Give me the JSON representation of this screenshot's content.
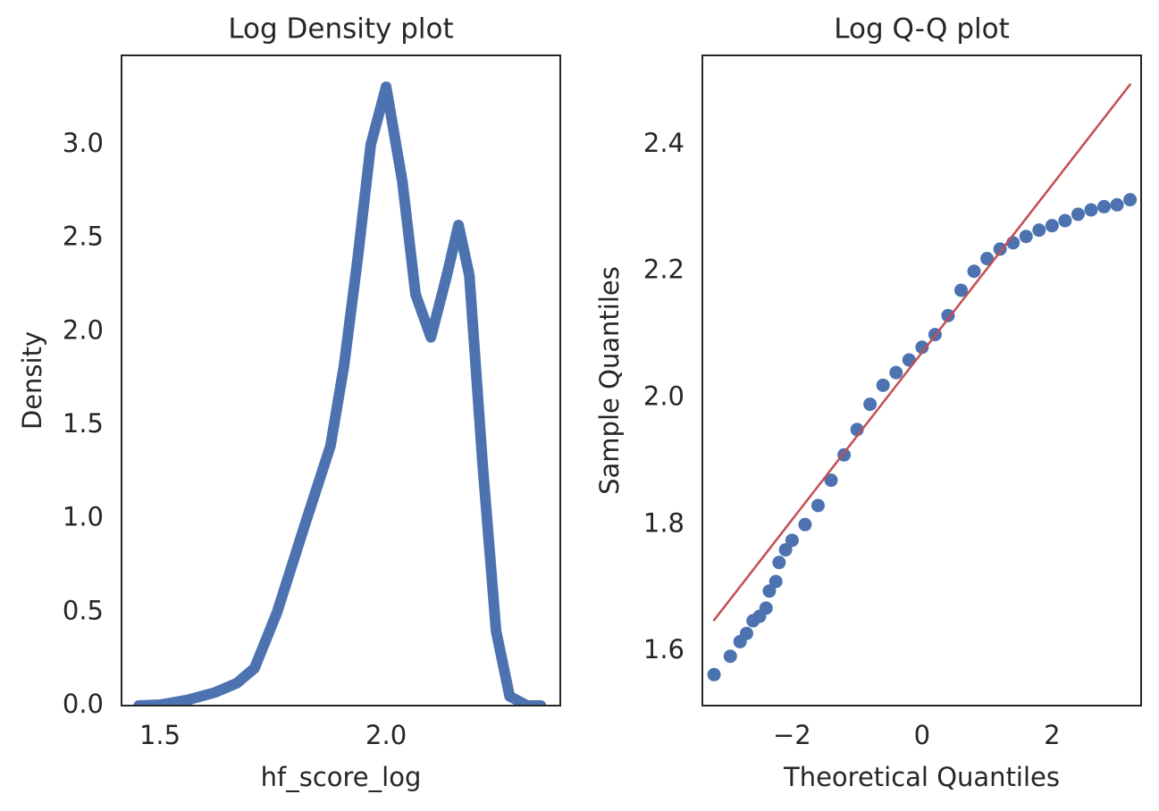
{
  "chart_data": [
    {
      "type": "line",
      "title": "Log Density plot",
      "xlabel": "hf_score_log",
      "ylabel": "Density",
      "xlim": [
        1.415,
        2.385
      ],
      "ylim": [
        0,
        3.478
      ],
      "xticks": [
        1.5,
        {
          "value": 2.0,
          "label": "2.0"
        }
      ],
      "yticks": [
        {
          "value": 0,
          "label": "0.0"
        },
        0.5,
        {
          "value": 1,
          "label": "1.0"
        },
        1.5,
        {
          "value": 2,
          "label": "2.0"
        },
        2.5,
        {
          "value": 3,
          "label": "3.0"
        }
      ],
      "grid": false,
      "series": [
        {
          "type": "line",
          "color": "#4c72b0",
          "x": [
            1.453,
            1.502,
            1.561,
            1.621,
            1.67,
            1.709,
            1.759,
            1.818,
            1.877,
            1.907,
            1.937,
            1.966,
            2.0,
            2.036,
            2.065,
            2.099,
            2.134,
            2.16,
            2.184,
            2.213,
            2.243,
            2.273,
            2.312,
            2.342
          ],
          "values": [
            0.0,
            0.005,
            0.03,
            0.07,
            0.12,
            0.2,
            0.5,
            0.95,
            1.39,
            1.82,
            2.39,
            3.0,
            3.31,
            2.8,
            2.2,
            1.97,
            2.3,
            2.57,
            2.3,
            1.3,
            0.4,
            0.05,
            0.0,
            0.0
          ]
        }
      ]
    },
    {
      "type": "scatter",
      "title": "Log Q-Q plot",
      "xlabel": "Theoretical Quantiles",
      "ylabel": "Sample Quantiles",
      "xlim": [
        -3.38,
        3.37
      ],
      "ylim": [
        1.514,
        2.541
      ],
      "xticks": [
        {
          "value": -2,
          "label": "−2"
        },
        0,
        2
      ],
      "yticks": [
        1.6,
        1.8,
        {
          "value": 2.0,
          "label": "2.0"
        },
        2.2,
        2.4
      ],
      "grid": false,
      "series": [
        {
          "type": "scatter",
          "color": "#4c72b0",
          "x": [
            -3.2,
            -2.95,
            -2.8,
            -2.7,
            -2.6,
            -2.5,
            -2.4,
            -2.35,
            -2.25,
            -2.2,
            -2.1,
            -2.0,
            -1.8,
            -1.6,
            -1.4,
            -1.2,
            -1.0,
            -0.8,
            -0.6,
            -0.4,
            -0.2,
            0,
            0.2,
            0.4,
            0.6,
            0.8,
            1.0,
            1.2,
            1.4,
            1.6,
            1.8,
            2.0,
            2.2,
            2.4,
            2.6,
            2.8,
            3.0,
            3.2
          ],
          "values": [
            1.563,
            1.592,
            1.615,
            1.628,
            1.648,
            1.655,
            1.668,
            1.695,
            1.71,
            1.74,
            1.76,
            1.775,
            1.8,
            1.83,
            1.87,
            1.91,
            1.95,
            1.99,
            2.02,
            2.04,
            2.06,
            2.08,
            2.1,
            2.13,
            2.17,
            2.2,
            2.22,
            2.235,
            2.245,
            2.255,
            2.265,
            2.272,
            2.28,
            2.29,
            2.297,
            2.302,
            2.305,
            2.313
          ]
        },
        {
          "type": "line",
          "color": "#c44e52",
          "x": [
            -3.2,
            3.2
          ],
          "values": [
            1.649,
            2.495
          ]
        }
      ]
    }
  ]
}
